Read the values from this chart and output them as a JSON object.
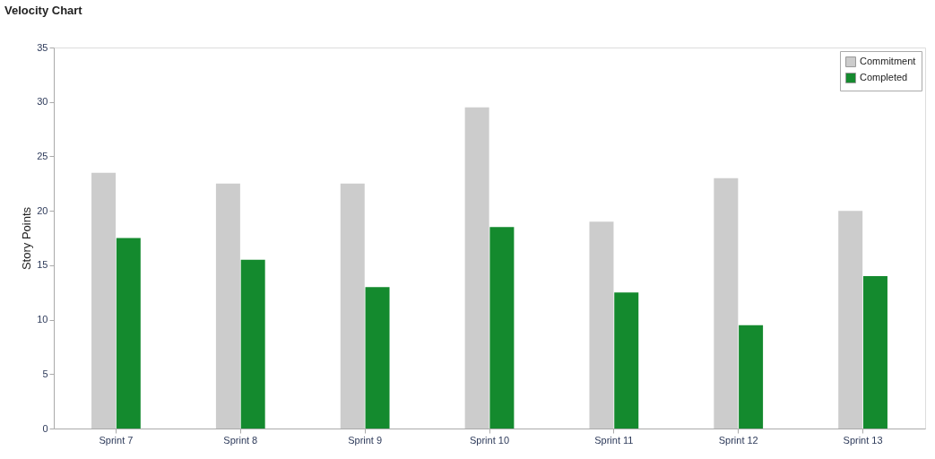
{
  "chart_data": {
    "type": "bar",
    "title": "Velocity Chart",
    "ylabel": "Story Points",
    "categories": [
      "Sprint 7",
      "Sprint 8",
      "Sprint 9",
      "Sprint 10",
      "Sprint 11",
      "Sprint 12",
      "Sprint 13"
    ],
    "series": [
      {
        "name": "Commitment",
        "color": "#cccccc",
        "values": [
          23.5,
          22.5,
          22.5,
          29.5,
          19,
          23,
          20
        ]
      },
      {
        "name": "Completed",
        "color": "#148a2e",
        "values": [
          17.5,
          15.5,
          13,
          18.5,
          12.5,
          9.5,
          14
        ]
      }
    ],
    "ylim": [
      0,
      35
    ],
    "yticks": [
      0,
      5,
      10,
      15,
      20,
      25,
      30,
      35
    ],
    "grid": false,
    "legend": "top right"
  }
}
